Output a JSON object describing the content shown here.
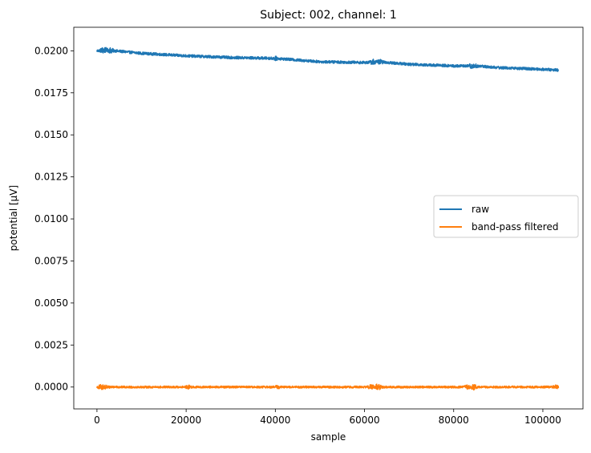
{
  "chart_data": {
    "type": "line",
    "title": "Subject: 002, channel: 1",
    "xlabel": "sample",
    "ylabel": "potential [µV]",
    "xlim": [
      -5200,
      109000
    ],
    "ylim": [
      -0.0013,
      0.0214
    ],
    "x_ticks": [
      0,
      20000,
      40000,
      60000,
      80000,
      100000
    ],
    "x_tick_labels": [
      "0",
      "20000",
      "40000",
      "60000",
      "80000",
      "100000"
    ],
    "y_ticks": [
      0.0,
      0.0025,
      0.005,
      0.0075,
      0.01,
      0.0125,
      0.015,
      0.0175,
      0.02
    ],
    "y_tick_labels": [
      "0.0000",
      "0.0025",
      "0.0050",
      "0.0075",
      "0.0100",
      "0.0125",
      "0.0150",
      "0.0175",
      "0.0200"
    ],
    "legend_position": "center-right",
    "grid": false,
    "series": [
      {
        "name": "raw",
        "color": "#1f77b4",
        "x": [
          0,
          2000,
          4000,
          10000,
          20000,
          30000,
          40000,
          50000,
          60000,
          63000,
          70000,
          80000,
          85000,
          90000,
          100000,
          103500
        ],
        "y": [
          0.02,
          0.02005,
          0.02,
          0.01985,
          0.0197,
          0.0196,
          0.01955,
          0.01935,
          0.0193,
          0.01935,
          0.0192,
          0.0191,
          0.0191,
          0.019,
          0.0189,
          0.01885
        ],
        "noise_amplitude": 8e-05,
        "spikes": [
          {
            "x": 1500,
            "amp": 0.00018
          },
          {
            "x": 3000,
            "amp": 0.00015
          },
          {
            "x": 40000,
            "amp": 0.0001
          },
          {
            "x": 62000,
            "amp": 0.00015
          },
          {
            "x": 63500,
            "amp": 0.00012
          },
          {
            "x": 84000,
            "amp": 0.00013
          },
          {
            "x": 85000,
            "amp": 0.0001
          }
        ]
      },
      {
        "name": "band-pass filtered",
        "color": "#ff7f0e",
        "x": [
          0,
          103500
        ],
        "y": [
          0.0,
          0.0
        ],
        "noise_amplitude": 6e-05,
        "spikes": [
          {
            "x": 1000,
            "amp": 0.00015
          },
          {
            "x": 2000,
            "amp": 0.00012
          },
          {
            "x": 20500,
            "amp": 0.0001
          },
          {
            "x": 40500,
            "amp": 0.0001
          },
          {
            "x": 61500,
            "amp": 0.00014
          },
          {
            "x": 63000,
            "amp": 0.00018
          },
          {
            "x": 83000,
            "amp": 0.00012
          },
          {
            "x": 84500,
            "amp": 0.00015
          },
          {
            "x": 103000,
            "amp": 0.00012
          }
        ]
      }
    ]
  }
}
